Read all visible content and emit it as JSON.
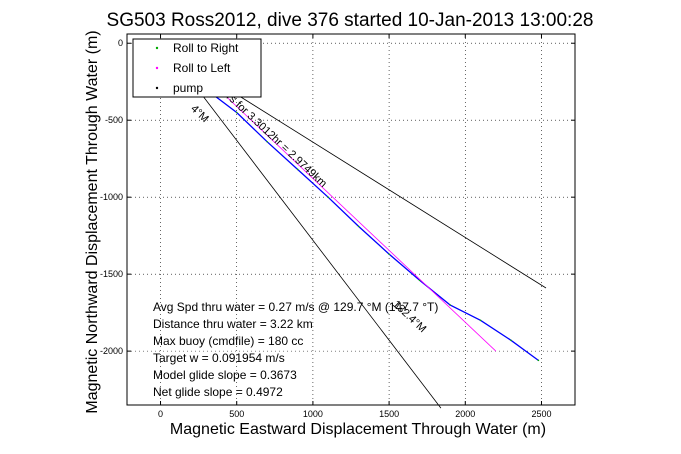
{
  "chart_data": {
    "type": "line",
    "title": "SG503 Ross2012, dive 376 started 10-Jan-2013 13:00:28",
    "xlabel": "Magnetic Eastward Displacement Through Water (m)",
    "ylabel": "Magnetic Northward Displacement Through Water (m)",
    "xlim": [
      -220,
      2720
    ],
    "ylim": [
      -2350,
      60
    ],
    "xticks": [
      0,
      500,
      1000,
      1500,
      2000,
      2500
    ],
    "yticks": [
      0,
      -500,
      -1000,
      -1500,
      -2000
    ],
    "grid": true,
    "legend_position": "top-left",
    "legend": [
      {
        "label": "Roll to Right",
        "color": "#00aa00",
        "marker": "dot"
      },
      {
        "label": "Roll to Left",
        "color": "#ff00ff",
        "marker": "dot"
      },
      {
        "label": "pump",
        "color": "#000000",
        "marker": "dot"
      }
    ],
    "series": [
      {
        "style": "track",
        "color": "#0000ff",
        "x": [
          50,
          150,
          300,
          500,
          700,
          900,
          1100,
          1300,
          1500,
          1700,
          1900,
          2100,
          2300,
          2480
        ],
        "y": [
          0,
          -140,
          -300,
          -450,
          -640,
          -820,
          -1000,
          -1190,
          -1370,
          -1540,
          -1700,
          -1800,
          -1930,
          -2060
        ]
      },
      {
        "style": "model",
        "color": "#ff00ff",
        "x": [
          60,
          2200
        ],
        "y": [
          0,
          -2000
        ]
      },
      {
        "style": "reference",
        "color": "#000000",
        "x": [
          60,
          2530
        ],
        "y": [
          -60,
          -1590
        ]
      },
      {
        "style": "reference",
        "color": "#000000",
        "x": [
          60,
          1840
        ],
        "y": [
          -60,
          -2370
        ]
      }
    ],
    "annotations": [
      {
        "text": "52m/s for 3.3012hr = 2.9749km",
        "x": 330,
        "y": -260,
        "angle": 43
      },
      {
        "text": "132.4°M",
        "x": 1520,
        "y": -1700,
        "angle": 43
      },
      {
        "text": "4°M",
        "x": 195,
        "y": -430,
        "angle": 43
      }
    ],
    "stats": [
      "Avg Spd thru water =  0.27 m/s @ 129.7 °M (147.7 °T)",
      "Distance thru water =  3.22 km",
      "Max buoy (cmdfile) = 180 cc",
      "Target w = 0.091954 m/s",
      "Model glide slope = 0.3673",
      "Net glide slope = 0.4972"
    ]
  }
}
